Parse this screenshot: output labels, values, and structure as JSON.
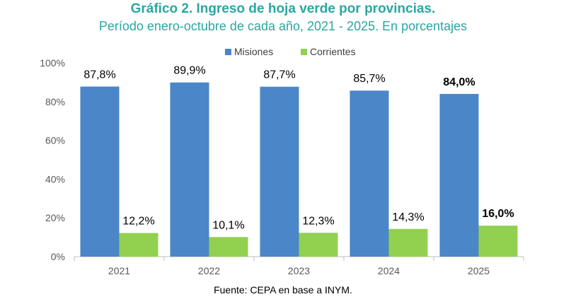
{
  "header": {
    "title": "Gráfico 2. Ingreso de hoja verde por provincias.",
    "subtitle": "Período enero-octubre de cada año, 2021 - 2025. En porcentajes",
    "title_color": "#2BA7A0",
    "subtitle_color": "#2BA7A0"
  },
  "footer": {
    "source": "Fuente: CEPA en base a INYM."
  },
  "chart_data": {
    "type": "bar",
    "categories": [
      "2021",
      "2022",
      "2023",
      "2024",
      "2025"
    ],
    "series": [
      {
        "name": "Misiones",
        "color": "#4A86C8",
        "values": [
          87.8,
          89.9,
          87.7,
          85.7,
          84.0
        ],
        "labels": [
          "87,8%",
          "89,9%",
          "87,7%",
          "85,7%",
          "84,0%"
        ]
      },
      {
        "name": "Corrientes",
        "color": "#92D050",
        "values": [
          12.2,
          10.1,
          12.3,
          14.3,
          16.0
        ],
        "labels": [
          "12,2%",
          "10,1%",
          "12,3%",
          "14,3%",
          "16,0%"
        ]
      }
    ],
    "bold_label_category": "2025",
    "ylim": [
      0,
      100
    ],
    "yticks": [
      0,
      20,
      40,
      60,
      80,
      100
    ],
    "ytick_labels": [
      "0%",
      "20%",
      "40%",
      "60%",
      "80%",
      "100%"
    ],
    "grid": false,
    "legend": "top-center"
  }
}
